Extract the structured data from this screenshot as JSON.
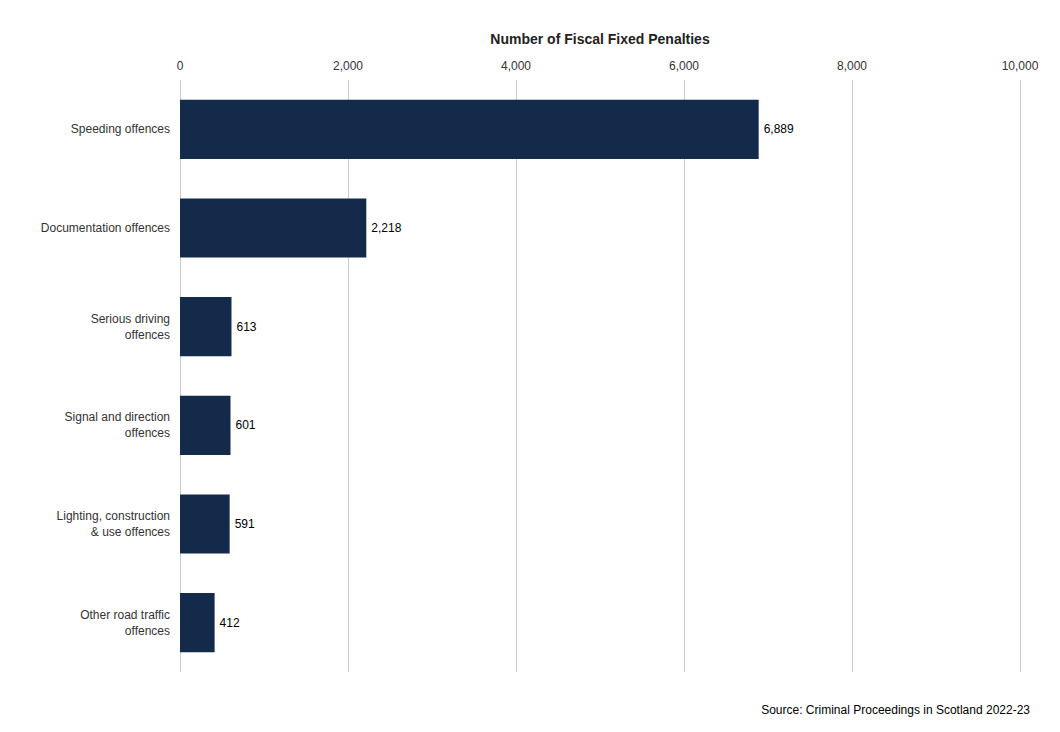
{
  "chart_data": {
    "type": "bar",
    "orientation": "horizontal",
    "categories": [
      "Other road traffic\noffences",
      "Lighting, construction\n& use offences",
      "Signal and direction\noffences",
      "Serious driving\noffences",
      "Documentation offences",
      "Speeding offences"
    ],
    "values": [
      412,
      591,
      601,
      613,
      2218,
      6889
    ],
    "value_labels": [
      "412",
      "591",
      "601",
      "613",
      "2,218",
      "6,889"
    ],
    "data_labels": true,
    "color": "#132a4a",
    "xlabel": "Number of Fiscal Fixed Penalties",
    "xlim": [
      0,
      10000
    ],
    "xticks": [
      0,
      {
        "value": 2000,
        "label": "2,000"
      },
      {
        "value": 4000,
        "label": "4,000"
      },
      {
        "value": 6000,
        "label": "6,000"
      },
      {
        "value": 8000,
        "label": "8,000"
      },
      {
        "value": 10000,
        "label": "10,000"
      }
    ],
    "grid": true,
    "source": "Source: Criminal Proceedings in Scotland 2022-23"
  }
}
